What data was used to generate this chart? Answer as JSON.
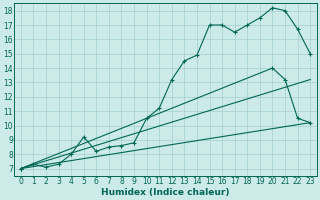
{
  "xlabel": "Humidex (Indice chaleur)",
  "bg_color": "#cceae7",
  "grid_color": "#aad4d0",
  "line_color": "#006655",
  "xlim": [
    -0.5,
    23.5
  ],
  "ylim": [
    6.5,
    18.5
  ],
  "xticks": [
    0,
    1,
    2,
    3,
    4,
    5,
    6,
    7,
    8,
    9,
    10,
    11,
    12,
    13,
    14,
    15,
    16,
    17,
    18,
    19,
    20,
    21,
    22,
    23
  ],
  "yticks": [
    7,
    8,
    9,
    10,
    11,
    12,
    13,
    14,
    15,
    16,
    17,
    18
  ],
  "line1_x": [
    0,
    1,
    2,
    3,
    4,
    5,
    6,
    7,
    8,
    9,
    10,
    11,
    12,
    13,
    14,
    15,
    16,
    17,
    18,
    19,
    20,
    21,
    22,
    23
  ],
  "line1_y": [
    7.0,
    7.3,
    7.1,
    7.3,
    8.0,
    9.2,
    8.2,
    8.5,
    8.6,
    8.8,
    10.5,
    11.2,
    13.2,
    14.5,
    14.9,
    17.0,
    17.0,
    16.5,
    17.0,
    17.5,
    18.2,
    18.0,
    16.7,
    15.0
  ],
  "line2_x": [
    0,
    20,
    21,
    22,
    23
  ],
  "line2_y": [
    7.0,
    14.0,
    13.2,
    10.5,
    10.2
  ],
  "line3_x": [
    0,
    23
  ],
  "line3_y": [
    7.0,
    13.2
  ],
  "line4_x": [
    0,
    23
  ],
  "line4_y": [
    7.0,
    10.2
  ]
}
